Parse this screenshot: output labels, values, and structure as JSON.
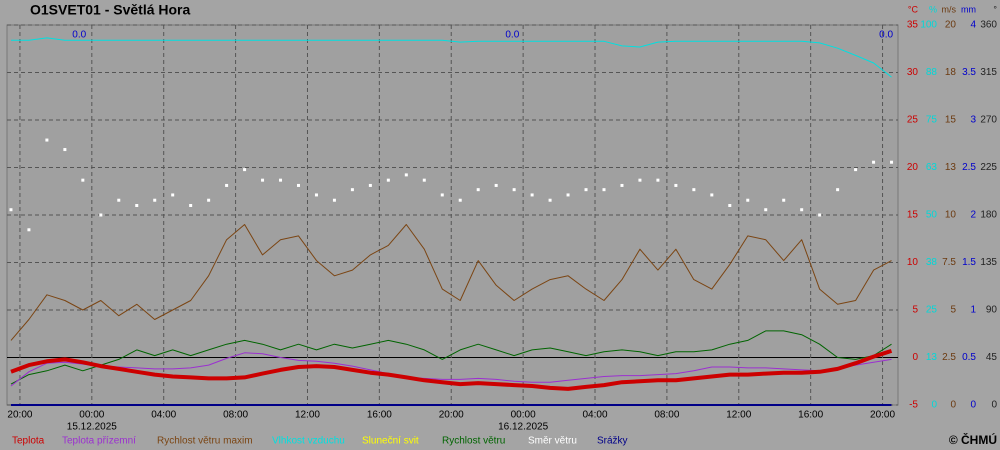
{
  "chart_data": {
    "type": "line",
    "title": "O1SVET01 - Světlá Hora",
    "credit": "© ČHMÚ",
    "x": [
      -0.5,
      0.5,
      1.5,
      2.5,
      3.5,
      4.5,
      5.5,
      6.5,
      7.5,
      8.5,
      9.5,
      10.5,
      11.5,
      12.5,
      13.5,
      14.5,
      15.5,
      16.5,
      17.5,
      18.5,
      19.5,
      20.5,
      21.5,
      22.5,
      23.5,
      24.5,
      25.5,
      26.5,
      27.5,
      28.5,
      29.5,
      30.5,
      31.5,
      32.5,
      33.5,
      34.5,
      35.5,
      36.5,
      37.5,
      38.5,
      39.5,
      40.5,
      41.5,
      42.5,
      43.5,
      44.5,
      45.5,
      46.5,
      47.5,
      48.5
    ],
    "xlim": [
      -0.72,
      48.86
    ],
    "xticks": [
      {
        "value": 0,
        "label": "20:00"
      },
      {
        "value": 4,
        "label": "00:00"
      },
      {
        "value": 8,
        "label": "04:00"
      },
      {
        "value": 12,
        "label": "08:00"
      },
      {
        "value": 16,
        "label": "12:00"
      },
      {
        "value": 20,
        "label": "16:00"
      },
      {
        "value": 24,
        "label": "20:00"
      },
      {
        "value": 28,
        "label": "00:00"
      },
      {
        "value": 32,
        "label": "04:00"
      },
      {
        "value": 36,
        "label": "08:00"
      },
      {
        "value": 40,
        "label": "12:00"
      },
      {
        "value": 44,
        "label": "16:00"
      },
      {
        "value": 48,
        "label": "20:00"
      }
    ],
    "date_labels": [
      {
        "value": 4,
        "label": "15.12.2025"
      },
      {
        "value": 28,
        "label": "16.12.2025"
      }
    ],
    "grid": true,
    "axes": [
      {
        "unit": "°C",
        "color": "#cc0000",
        "lim": [
          -5,
          35
        ],
        "ticks": [
          35,
          30,
          25,
          20,
          15,
          10,
          5,
          0,
          -5
        ]
      },
      {
        "unit": "%",
        "color": "#00d8d8",
        "lim": [
          0,
          100
        ],
        "ticks": [
          100,
          {
            "value": 87.5,
            "label": "88"
          },
          75,
          {
            "value": 62.5,
            "label": "63"
          },
          50,
          {
            "value": 37.5,
            "label": "38"
          },
          25,
          {
            "value": 12.5,
            "label": "13"
          },
          0
        ]
      },
      {
        "unit": "m/s",
        "color": "#6b3a10",
        "lim": [
          0,
          20
        ],
        "ticks": [
          20,
          {
            "value": 17.5,
            "label": "18"
          },
          15,
          {
            "value": 12.5,
            "label": "13"
          },
          10,
          7.5,
          5,
          2.5,
          0
        ]
      },
      {
        "unit": "mm",
        "color": "#0000cc",
        "lim": [
          0,
          4
        ],
        "ticks": [
          4,
          3.5,
          3,
          2.5,
          2,
          1.5,
          1,
          0.5,
          0
        ]
      },
      {
        "unit": "°",
        "color": "#222222",
        "lim": [
          0,
          360
        ],
        "ticks": [
          360,
          315,
          270,
          225,
          180,
          135,
          90,
          45,
          0
        ]
      }
    ],
    "annotations": [
      {
        "x": 3.3,
        "text": "0.0"
      },
      {
        "x": 27.4,
        "text": "0.0"
      },
      {
        "x": 48.2,
        "text": "0.0"
      }
    ],
    "series": [
      {
        "name": "Teplota",
        "color": "#cc0000",
        "axis": 0,
        "width": 4,
        "values": [
          -1.5,
          -0.8,
          -0.4,
          -0.2,
          -0.5,
          -0.9,
          -1.2,
          -1.5,
          -1.8,
          -2.0,
          -2.1,
          -2.2,
          -2.2,
          -2.1,
          -1.7,
          -1.3,
          -1.0,
          -0.9,
          -1.0,
          -1.3,
          -1.6,
          -1.8,
          -2.1,
          -2.4,
          -2.6,
          -2.8,
          -2.7,
          -2.8,
          -2.9,
          -3.0,
          -3.2,
          -3.3,
          -3.1,
          -2.9,
          -2.6,
          -2.5,
          -2.4,
          -2.4,
          -2.2,
          -2.0,
          -1.8,
          -1.8,
          -1.7,
          -1.6,
          -1.6,
          -1.5,
          -1.2,
          -0.6,
          0.1,
          0.7
        ]
      },
      {
        "name": "Teplota přízemní",
        "color": "#9b30d0",
        "axis": 0,
        "width": 1,
        "values": [
          -3.0,
          -1.5,
          -0.6,
          -0.5,
          -0.7,
          -0.9,
          -1.0,
          -1.1,
          -1.2,
          -1.2,
          -1.1,
          -0.8,
          -0.1,
          0.5,
          0.4,
          0.0,
          -0.3,
          -0.4,
          -0.6,
          -0.9,
          -1.3,
          -1.7,
          -2.1,
          -2.2,
          -2.3,
          -2.3,
          -2.2,
          -2.3,
          -2.5,
          -2.6,
          -2.6,
          -2.4,
          -2.2,
          -2.0,
          -1.9,
          -1.9,
          -1.8,
          -1.7,
          -1.4,
          -1.0,
          -1.0,
          -1.1,
          -1.1,
          -1.2,
          -1.3,
          -1.4,
          -1.1,
          -0.8,
          -0.5,
          -0.2
        ]
      },
      {
        "name": "Rychlost větru maxim",
        "color": "#7b4513",
        "axis": 2,
        "width": 1,
        "values": [
          3.4,
          4.5,
          5.8,
          5.5,
          5.0,
          5.5,
          4.7,
          5.3,
          4.5,
          5.0,
          5.5,
          6.8,
          8.7,
          9.5,
          7.9,
          8.7,
          8.9,
          7.6,
          6.8,
          7.1,
          7.9,
          8.4,
          9.5,
          8.2,
          6.1,
          5.5,
          7.6,
          6.3,
          5.5,
          6.1,
          6.6,
          6.8,
          6.1,
          5.5,
          6.6,
          8.2,
          7.1,
          8.2,
          6.6,
          6.1,
          7.4,
          8.9,
          8.7,
          7.6,
          8.7,
          6.1,
          5.3,
          5.5,
          7.1,
          7.6
        ]
      },
      {
        "name": "Vlhkost vzduchu",
        "color": "#00e0e0",
        "axis": 1,
        "width": 1,
        "values": [
          96,
          96,
          96.6,
          96,
          96,
          96,
          96,
          96,
          96,
          96,
          96,
          96,
          96,
          96,
          96,
          96,
          96,
          96,
          96,
          96,
          96,
          96,
          96,
          96,
          96,
          95.5,
          95.7,
          95.7,
          95.7,
          95.7,
          95.7,
          95.7,
          95.7,
          95.7,
          94.5,
          94.2,
          95.5,
          95.7,
          95.7,
          95.7,
          95.7,
          95.7,
          95.7,
          95.7,
          95.7,
          95.3,
          93.9,
          92,
          90,
          86.3
        ]
      },
      {
        "name": "Sluneční svit",
        "color": "#ffff00"
      },
      {
        "name": "Rychlost větru",
        "color": "#006400",
        "axis": 2,
        "width": 1,
        "values": [
          1.1,
          1.6,
          1.8,
          2.1,
          1.8,
          2.1,
          2.4,
          2.9,
          2.6,
          2.9,
          2.6,
          2.9,
          3.2,
          3.4,
          3.2,
          2.9,
          3.2,
          2.9,
          3.2,
          3.0,
          3.2,
          3.4,
          3.2,
          2.9,
          2.4,
          2.9,
          3.2,
          2.9,
          2.6,
          2.9,
          3.0,
          2.8,
          2.6,
          2.8,
          2.9,
          2.8,
          2.6,
          2.8,
          2.8,
          2.9,
          3.2,
          3.4,
          3.9,
          3.9,
          3.7,
          3.2,
          2.5,
          2.4,
          2.6,
          3.2
        ]
      },
      {
        "name": "Směr větru",
        "color": "#ffffff",
        "axis": 4,
        "mark": "dots",
        "values": [
          185,
          166,
          251,
          242,
          213,
          180,
          194,
          189,
          194,
          199,
          189,
          194,
          208,
          223,
          213,
          213,
          208,
          199,
          194,
          204,
          208,
          213,
          218,
          213,
          199,
          194,
          204,
          208,
          204,
          199,
          194,
          199,
          204,
          204,
          208,
          213,
          213,
          208,
          204,
          199,
          189,
          194,
          185,
          194,
          185,
          180,
          204,
          223,
          230,
          230
        ]
      },
      {
        "name": "Srážky",
        "color": "#000088",
        "axis": 3,
        "width": 2,
        "values": [
          0,
          0,
          0,
          0,
          0,
          0,
          0,
          0,
          0,
          0,
          0,
          0,
          0,
          0,
          0,
          0,
          0,
          0,
          0,
          0,
          0,
          0,
          0,
          0,
          0,
          0,
          0,
          0,
          0,
          0,
          0,
          0,
          0,
          0,
          0,
          0,
          0,
          0,
          0,
          0,
          0,
          0,
          0,
          0,
          0,
          0,
          0,
          0,
          0,
          0
        ]
      }
    ]
  }
}
